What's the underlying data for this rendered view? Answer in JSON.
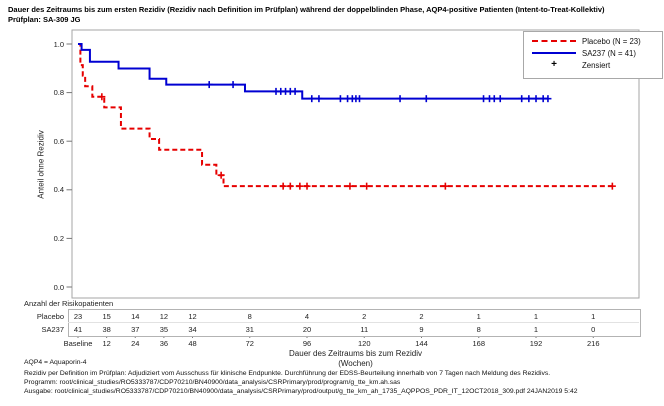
{
  "title": {
    "line1": "Dauer des Zeitraums bis zum ersten Rezidiv (Rezidiv nach Definition im Prüfplan) während der doppelblinden Phase, AQP4-positive Patienten (Intent-to-Treat-Kollektiv)",
    "line2": "Prüfplan: SA-309 JG"
  },
  "legend": {
    "placebo_label": "Placebo (N = 23)",
    "sa237_label": "SA237 (N = 41)",
    "censored_label": "Zensiert",
    "censored_symbol": "+"
  },
  "axes": {
    "y_label": "Anteil ohne Rezidiv",
    "x_label_line1": "Dauer des Zeitraums bis zum Rezidiv",
    "x_label_line2": "(Wochen)",
    "y_tick_labels": [
      "1.0",
      "0.8",
      "0.6",
      "0.4",
      "0.2",
      "0.0"
    ],
    "x_tick_labels": [
      "Baseline",
      "12",
      "24",
      "36",
      "48",
      "72",
      "96",
      "120",
      "144",
      "168",
      "192",
      "216"
    ]
  },
  "risk_table": {
    "caption": "Anzahl der Risikopatienten",
    "weeks": [
      0,
      12,
      24,
      36,
      48,
      72,
      96,
      120,
      144,
      168,
      192,
      216
    ],
    "rows": [
      {
        "label": "Placebo",
        "counts": [
          23,
          15,
          14,
          12,
          12,
          8,
          4,
          2,
          2,
          1,
          1,
          1
        ]
      },
      {
        "label": "SA237",
        "counts": [
          41,
          38,
          37,
          35,
          34,
          31,
          20,
          11,
          9,
          8,
          1,
          0
        ]
      }
    ]
  },
  "footnotes": [
    "AQP4 = Aquaporin-4",
    "Rezidiv per Definition im Prüfplan: Adjudiziert vom Ausschuss für klinische Endpunkte. Durchführung der EDSS-Beurteilung innerhalb von 7 Tagen nach Meldung des Rezidivs.",
    "Programm: root/clinical_studies/RO5333787/CDP70210/BN40900/data_analysis/CSRPrimary/prod/program/g_tte_km.ah.sas",
    "Ausgabe: root/clinical_studies/RO5333787/CDP70210/BN40900/data_analysis/CSRPrimary/prod/output/g_tte_km_ah_1735_AQPPOS_PDR_IT_12OCT2018_309.pdf 24JAN2019 5:42"
  ],
  "colors": {
    "placebo": "#e60000",
    "sa237": "#0000d2",
    "frame": "#a6a6a6",
    "tick": "#777777",
    "censor_legend": "#000000"
  },
  "chart_data": {
    "type": "line",
    "subtype": "kaplan-meier-step",
    "title": "Dauer des Zeitraums bis zum ersten Rezidiv, AQP4-positive Patienten (ITT)",
    "xlabel": "Dauer des Zeitraums bis zum Rezidiv (Wochen)",
    "ylabel": "Anteil ohne Rezidiv",
    "xlim": [
      0,
      235
    ],
    "ylim": [
      0.0,
      1.0
    ],
    "y_tick_values": [
      1.0,
      0.8,
      0.6,
      0.4,
      0.2,
      0.0
    ],
    "x_tick_weeks": [
      0,
      12,
      24,
      36,
      48,
      72,
      96,
      120,
      144,
      168,
      192,
      216
    ],
    "grid": false,
    "legend_position": "top-right",
    "series": [
      {
        "name": "Placebo (N = 23)",
        "color": "#e60000",
        "dash": true,
        "steps": [
          [
            0,
            1.0
          ],
          [
            1,
            0.913
          ],
          [
            2,
            0.87
          ],
          [
            3,
            0.826
          ],
          [
            6,
            0.783
          ],
          [
            11,
            0.739
          ],
          [
            18,
            0.652
          ],
          [
            30,
            0.609
          ],
          [
            34,
            0.565
          ],
          [
            52,
            0.503
          ],
          [
            58,
            0.46
          ],
          [
            61,
            0.415
          ]
        ],
        "end_week": 224,
        "censored": [
          [
            10,
            0.783
          ],
          [
            60,
            0.46
          ],
          [
            86,
            0.415
          ],
          [
            89,
            0.415
          ],
          [
            93,
            0.415
          ],
          [
            96,
            0.415
          ],
          [
            114,
            0.415
          ],
          [
            121,
            0.415
          ],
          [
            154,
            0.415
          ],
          [
            224,
            0.415
          ]
        ]
      },
      {
        "name": "SA237 (N = 41)",
        "color": "#0000d2",
        "dash": false,
        "steps": [
          [
            0,
            1.0
          ],
          [
            1.5,
            0.976
          ],
          [
            5,
            0.927
          ],
          [
            17,
            0.899
          ],
          [
            30,
            0.857
          ],
          [
            37,
            0.833
          ],
          [
            70,
            0.805
          ],
          [
            94,
            0.775
          ]
        ],
        "end_week": 197,
        "censored": [
          [
            55,
            0.833
          ],
          [
            65,
            0.833
          ],
          [
            83,
            0.805
          ],
          [
            85,
            0.805
          ],
          [
            87,
            0.805
          ],
          [
            89,
            0.805
          ],
          [
            91,
            0.805
          ],
          [
            98,
            0.775
          ],
          [
            101,
            0.775
          ],
          [
            110,
            0.775
          ],
          [
            113,
            0.775
          ],
          [
            115,
            0.775
          ],
          [
            116.5,
            0.775
          ],
          [
            118,
            0.775
          ],
          [
            135,
            0.775
          ],
          [
            146,
            0.775
          ],
          [
            170,
            0.775
          ],
          [
            172.5,
            0.775
          ],
          [
            174.5,
            0.775
          ],
          [
            177,
            0.775
          ],
          [
            186,
            0.775
          ],
          [
            189,
            0.775
          ],
          [
            192,
            0.775
          ],
          [
            195,
            0.775
          ],
          [
            197,
            0.775
          ]
        ]
      }
    ]
  }
}
